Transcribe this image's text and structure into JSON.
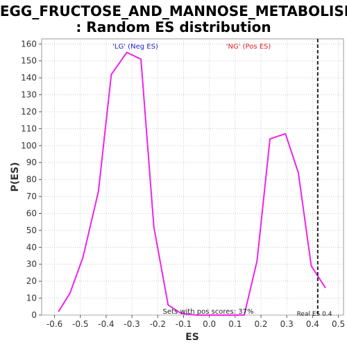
{
  "chart_data": {
    "type": "line",
    "title_line1": "KEGG_FRUCTOSE_AND_MANNOSE_METABOLISM",
    "title_line2": ": Random ES distribution",
    "xlabel": "ES",
    "ylabel": "P(ES)",
    "xlim": [
      -0.65,
      0.52
    ],
    "ylim": [
      0,
      163
    ],
    "x_ticks": [
      "-0.6",
      "-0.5",
      "-0.4",
      "-0.3",
      "-0.2",
      "-0.1",
      "0.0",
      "0.1",
      "0.2",
      "0.3",
      "0.4",
      "0.5"
    ],
    "y_ticks": [
      "0",
      "10",
      "20",
      "30",
      "40",
      "50",
      "60",
      "70",
      "80",
      "90",
      "100",
      "110",
      "120",
      "130",
      "140",
      "150",
      "160"
    ],
    "grid": true,
    "series": [
      {
        "color": "#ee22ee",
        "x": [
          -0.585,
          -0.54,
          -0.49,
          -0.43,
          -0.38,
          -0.32,
          -0.265,
          -0.215,
          -0.16,
          -0.11,
          -0.05,
          0.0,
          0.05,
          0.135,
          0.185,
          0.235,
          0.295,
          0.345,
          0.395,
          0.45
        ],
        "y": [
          2,
          13,
          34,
          73,
          142,
          155,
          151,
          52,
          6,
          1,
          0,
          0,
          0,
          0,
          32,
          104,
          107,
          84,
          29,
          16
        ]
      }
    ],
    "real_es": 0.42,
    "annotations": {
      "neg_label": "'LG' (Neg ES)",
      "pos_label": "'NG' (Pos ES)",
      "sets_pos": "Sets with pos scores: 37%",
      "real_es_label": "Real ES 0.4"
    },
    "colors": {
      "neg": "#2222cc",
      "pos": "#dd2222",
      "line": "#ee22ee",
      "grid": "#cccccc"
    }
  }
}
